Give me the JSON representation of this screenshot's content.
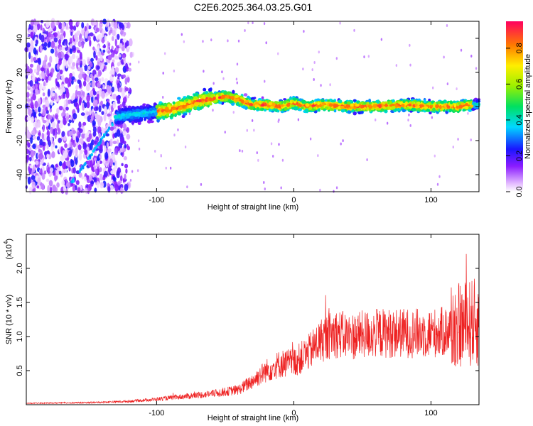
{
  "title": "C2E6.2025.364.03.25.G01",
  "chart_data": [
    {
      "type": "heatmap",
      "name": "spectrogram",
      "xlabel": "Height of straight line (km)",
      "ylabel": "Frequency (Hz)",
      "xlim": [
        -195,
        135
      ],
      "ylim": [
        -50,
        50
      ],
      "xticks": [
        -100,
        0,
        100
      ],
      "yticks": [
        -40,
        -20,
        0,
        20,
        40
      ],
      "ridge": {
        "x": [
          -130,
          -110,
          -90,
          -70,
          -50,
          -40,
          -30,
          -20,
          -10,
          0,
          10,
          20,
          40,
          60,
          80,
          100,
          120,
          130
        ],
        "y": [
          -6,
          -4,
          -2,
          3,
          6,
          4,
          1,
          1,
          0,
          2,
          0,
          1,
          0,
          0,
          1,
          0,
          0,
          1
        ]
      },
      "noise_region": [
        -195,
        -125
      ],
      "colorbar": {
        "label": "Normalized spectral amplitude",
        "range": [
          0,
          0.95
        ],
        "ticks": [
          "0.0",
          "0.2",
          "0.4",
          "0.6",
          "0.8"
        ],
        "tick_values": [
          0,
          0.2,
          0.4,
          0.6,
          0.8
        ]
      }
    },
    {
      "type": "line",
      "name": "snr",
      "xlabel": "Height of straight line (km)",
      "ylabel": "SNR (10 * v/v)",
      "scale_label": "(x10",
      "scale_exp": "4",
      "scale_close": ")",
      "xlim": [
        -195,
        135
      ],
      "ylim": [
        0,
        2.5
      ],
      "xticks": [
        -100,
        0,
        100
      ],
      "yticks": [
        0.5,
        1.0,
        1.5,
        2.0
      ],
      "ytick_labels": [
        "0.5",
        "1.0",
        "1.5",
        "2.0"
      ],
      "color": "#ee2222",
      "envelope": {
        "x": [
          -195,
          -150,
          -120,
          -100,
          -80,
          -60,
          -40,
          -30,
          -20,
          -10,
          0,
          10,
          20,
          30,
          40,
          60,
          80,
          100,
          110,
          120,
          130,
          135
        ],
        "y": [
          0.02,
          0.03,
          0.05,
          0.08,
          0.12,
          0.16,
          0.22,
          0.35,
          0.5,
          0.6,
          0.62,
          0.75,
          0.95,
          1.05,
          1.0,
          1.05,
          1.05,
          1.05,
          1.07,
          1.15,
          1.2,
          1.2
        ]
      }
    }
  ]
}
